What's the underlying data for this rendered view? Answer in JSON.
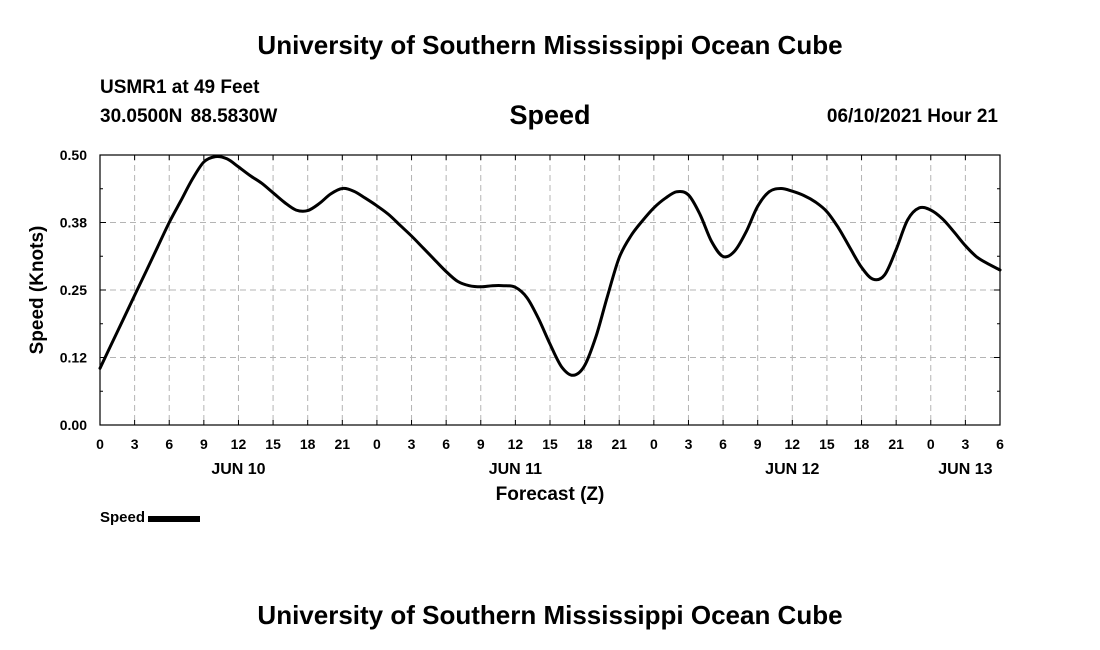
{
  "header": {
    "title": "University of Southern Mississippi Ocean Cube",
    "station_name": "USMR1 at 49 Feet",
    "station_location": "30.0500N  88.5830W",
    "variable": "Speed",
    "run_time": "06/10/2021 Hour 21"
  },
  "footer": {
    "title": "University of Southern Mississippi Ocean Cube"
  },
  "legend": {
    "label": "Speed"
  },
  "chart_data": {
    "type": "line",
    "title": "Speed",
    "xlabel": "Forecast (Z)",
    "ylabel": "Speed (Knots)",
    "ylim": [
      0,
      0.5
    ],
    "y_ticks": [
      "0.00",
      "0.12",
      "0.25",
      "0.38",
      "0.50"
    ],
    "xlim": [
      0,
      78
    ],
    "x_units": "hours from Jun 10 00Z",
    "x_tick_labels": [
      "0",
      "3",
      "6",
      "9",
      "12",
      "15",
      "18",
      "21",
      "0",
      "3",
      "6",
      "9",
      "12",
      "15",
      "18",
      "21",
      "0",
      "3",
      "6",
      "9",
      "12",
      "15",
      "18",
      "21",
      "0",
      "3",
      "6"
    ],
    "day_labels": [
      {
        "label": "JUN 10",
        "hour": 12
      },
      {
        "label": "JUN 11",
        "hour": 36
      },
      {
        "label": "JUN 12",
        "hour": 60
      },
      {
        "label": "JUN 13",
        "hour": 75
      }
    ],
    "grid": true,
    "series": [
      {
        "name": "Speed",
        "color": "#000000",
        "x": [
          0,
          1,
          2,
          3,
          4,
          5,
          6,
          7,
          8,
          9,
          10,
          11,
          12,
          13,
          14,
          15,
          16,
          17,
          18,
          19,
          20,
          21,
          22,
          23,
          24,
          25,
          26,
          27,
          28,
          29,
          30,
          31,
          32,
          33,
          34,
          35,
          36,
          37,
          38,
          39,
          40,
          41,
          42,
          43,
          44,
          45,
          46,
          47,
          48,
          49,
          50,
          51,
          52,
          53,
          54,
          55,
          56,
          57,
          58,
          59,
          60,
          61,
          62,
          63,
          64,
          65,
          66,
          67,
          68,
          69,
          70,
          71,
          72,
          73,
          74,
          75,
          76,
          77,
          78
        ],
        "values": [
          0.105,
          0.15,
          0.195,
          0.24,
          0.285,
          0.33,
          0.375,
          0.415,
          0.455,
          0.487,
          0.497,
          0.493,
          0.478,
          0.462,
          0.448,
          0.43,
          0.412,
          0.398,
          0.397,
          0.41,
          0.428,
          0.438,
          0.433,
          0.42,
          0.406,
          0.39,
          0.37,
          0.35,
          0.328,
          0.306,
          0.284,
          0.266,
          0.258,
          0.256,
          0.258,
          0.258,
          0.255,
          0.236,
          0.197,
          0.15,
          0.108,
          0.092,
          0.11,
          0.165,
          0.24,
          0.31,
          0.35,
          0.378,
          0.402,
          0.42,
          0.432,
          0.426,
          0.39,
          0.34,
          0.312,
          0.322,
          0.358,
          0.405,
          0.432,
          0.438,
          0.433,
          0.425,
          0.413,
          0.395,
          0.365,
          0.328,
          0.292,
          0.27,
          0.278,
          0.325,
          0.38,
          0.402,
          0.398,
          0.382,
          0.358,
          0.332,
          0.311,
          0.298,
          0.287
        ]
      }
    ]
  }
}
